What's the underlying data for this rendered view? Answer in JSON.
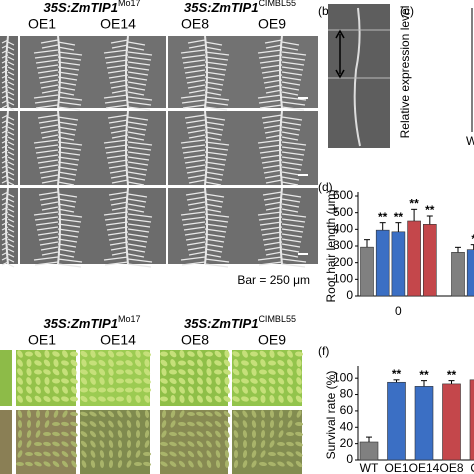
{
  "panel_a": {
    "headers": [
      {
        "text": "35S:ZmTIP1",
        "sup": "Mo17"
      },
      {
        "text": "35S:ZmTIP1",
        "sup": "CIMBL55"
      }
    ],
    "columns": [
      "OE1",
      "OE14",
      "OE8",
      "OE9"
    ],
    "scale_bar": "Bar = 250 μm"
  },
  "panel_b": {
    "label": "(b)"
  },
  "panel_c": {
    "label": "(c)",
    "y_label": "Relative expression level",
    "x_label": "W"
  },
  "panel_e": {
    "headers": [
      {
        "text": "35S:ZmTIP1",
        "sup": "Mo17"
      },
      {
        "text": "35S:ZmTIP1",
        "sup": "CIMBL55"
      }
    ],
    "columns": [
      "OE1",
      "OE14",
      "OE8",
      "OE9"
    ]
  },
  "chart_data": [
    {
      "type": "grouped_bar",
      "label": "(d)",
      "y_label": "Root hair length (μm)",
      "categories": [
        "0",
        null
      ],
      "series": [
        {
          "color": "#808080",
          "values": [
            293,
            262
          ],
          "errors": [
            45,
            30
          ],
          "significance": [
            null,
            null
          ]
        },
        {
          "color": "#3b6fc4",
          "values": [
            395,
            278
          ],
          "errors": [
            45,
            30
          ],
          "significance": [
            "**",
            "*"
          ]
        },
        {
          "color": "#3b6fc4",
          "values": [
            385,
            null
          ],
          "errors": [
            55,
            null
          ],
          "significance": [
            "**",
            null
          ]
        },
        {
          "color": "#c4474b",
          "values": [
            450,
            null
          ],
          "errors": [
            70,
            null
          ],
          "significance": [
            "**",
            null
          ]
        },
        {
          "color": "#c4474b",
          "values": [
            430,
            null
          ],
          "errors": [
            50,
            null
          ],
          "significance": [
            "**",
            null
          ]
        }
      ],
      "ylim": [
        0,
        600
      ],
      "yticks": [
        0,
        100,
        200,
        300,
        400,
        500,
        600
      ]
    },
    {
      "type": "bar",
      "label": "(f)",
      "y_label": "Survival rate (%)",
      "categories": [
        "WT",
        "OE1",
        "OE14",
        "OE8",
        "OE"
      ],
      "values": [
        22,
        95,
        90,
        93,
        98
      ],
      "errors": [
        6,
        3,
        7,
        4,
        2
      ],
      "colors": [
        "#808080",
        "#3b6fc4",
        "#3b6fc4",
        "#c4474b",
        "#c4474b"
      ],
      "significance": [
        null,
        "**",
        "**",
        "**",
        "**"
      ],
      "ylim": [
        0,
        110
      ],
      "yticks": [
        0,
        20,
        40,
        60,
        80,
        100
      ]
    }
  ]
}
